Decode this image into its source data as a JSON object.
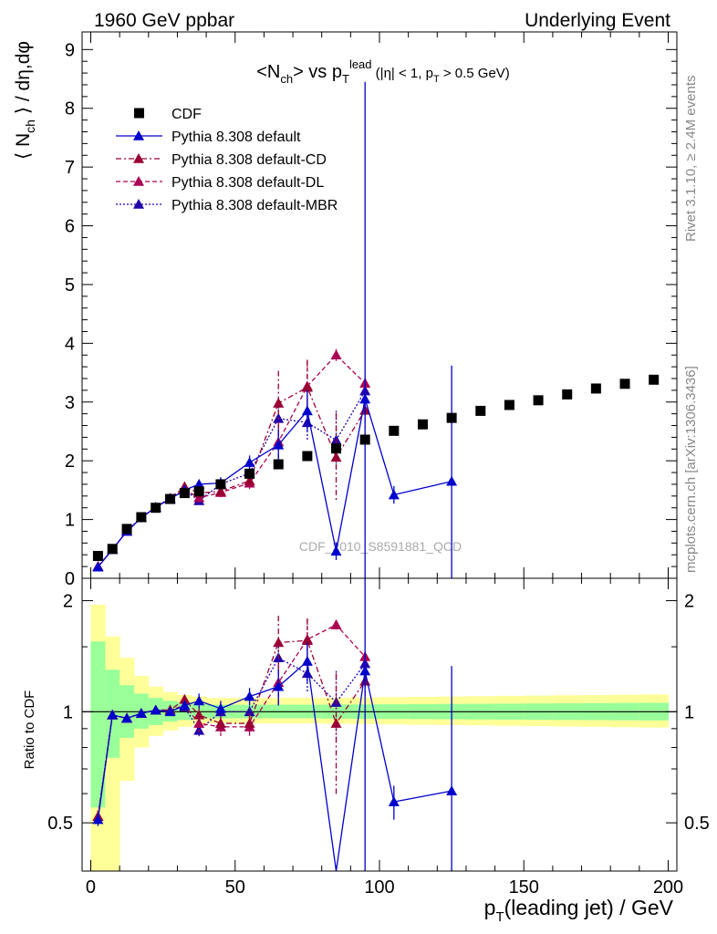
{
  "header": {
    "left": "1960 GeV ppbar",
    "right": "Underlying Event"
  },
  "side_labels": {
    "rivet": "Rivet 3.1.10, ≥ 2.4M events",
    "mcplots": "mcplots.cern.ch [arXiv:1306.3436]"
  },
  "watermark": "CDF_2010_S8591881_QCD",
  "colors": {
    "cdf": "#000000",
    "default": "#0000cc",
    "cd": "#990033",
    "dl": "#aa0055",
    "mbr": "#2200aa",
    "band_inner": "#99ff99",
    "band_outer": "#ffff99"
  },
  "legend": {
    "placement": "top-left",
    "entries": [
      {
        "label": "CDF",
        "key": "cdf",
        "style": "square"
      },
      {
        "label": "Pythia 8.308 default",
        "key": "default",
        "style": "solid"
      },
      {
        "label": "Pythia 8.308 default-CD",
        "key": "cd",
        "style": "dashdot"
      },
      {
        "label": "Pythia 8.308 default-DL",
        "key": "dl",
        "style": "dashed"
      },
      {
        "label": "Pythia 8.308 default-MBR",
        "key": "mbr",
        "style": "dotted"
      }
    ]
  },
  "chart_data": [
    {
      "type": "scatter",
      "panel": "main",
      "xlabel": "p_T(leading jet) / GeV",
      "ylabel": "⟨ N_ch ⟩ / dη,dφ",
      "xlim": [
        -3,
        203
      ],
      "ylim": [
        0,
        9.3
      ],
      "yticks": [
        0,
        1,
        2,
        3,
        4,
        5,
        6,
        7,
        8,
        9
      ],
      "series": [
        {
          "name": "CDF",
          "key": "cdf",
          "x": [
            2.5,
            7.5,
            12.5,
            17.5,
            22.5,
            27.5,
            32.5,
            37.5,
            45,
            55,
            65,
            75,
            85,
            95,
            105,
            115,
            125,
            135,
            145,
            155,
            165,
            175,
            185,
            195
          ],
          "y": [
            0.38,
            0.5,
            0.84,
            1.04,
            1.2,
            1.35,
            1.45,
            1.48,
            1.6,
            1.78,
            1.94,
            2.08,
            2.21,
            2.36,
            2.51,
            2.62,
            2.73,
            2.85,
            2.95,
            3.03,
            3.13,
            3.23,
            3.31,
            3.38
          ]
        },
        {
          "name": "Pythia 8.308 default",
          "key": "default",
          "x": [
            2.5,
            7.5,
            12.5,
            17.5,
            22.5,
            27.5,
            32.5,
            37.5,
            45,
            55,
            65,
            75,
            85,
            95,
            105,
            125
          ],
          "y": [
            0.19,
            0.49,
            0.8,
            1.03,
            1.21,
            1.35,
            1.5,
            1.6,
            1.62,
            1.97,
            2.27,
            2.85,
            0.46,
            3.05,
            1.42,
            1.65
          ],
          "err": [
            0.02,
            0.02,
            0.02,
            0.02,
            0.03,
            0.04,
            0.05,
            0.08,
            0.1,
            0.12,
            0.25,
            0.35,
            0.15,
            5.4,
            0.15,
            1.97
          ]
        },
        {
          "name": "Pythia 8.308 default-CD",
          "key": "cd",
          "x": [
            2.5,
            7.5,
            12.5,
            17.5,
            22.5,
            27.5,
            32.5,
            37.5,
            45,
            55,
            65,
            75,
            85,
            95
          ],
          "y": [
            0.2,
            0.49,
            0.8,
            1.03,
            1.21,
            1.36,
            1.56,
            1.45,
            1.48,
            1.66,
            2.98,
            3.25,
            2.06,
            2.86
          ],
          "err": [
            0.02,
            0.02,
            0.02,
            0.02,
            0.03,
            0.04,
            0.05,
            0.08,
            0.08,
            0.1,
            0.55,
            0.45,
            0.75,
            0.3
          ]
        },
        {
          "name": "Pythia 8.308 default-DL",
          "key": "dl",
          "x": [
            2.5,
            7.5,
            12.5,
            17.5,
            22.5,
            27.5,
            32.5,
            37.5,
            45,
            55,
            65,
            75,
            85,
            95
          ],
          "y": [
            0.2,
            0.49,
            0.8,
            1.03,
            1.21,
            1.36,
            1.51,
            1.37,
            1.46,
            1.62,
            2.32,
            3.27,
            3.8,
            3.32
          ],
          "err": [
            0.02,
            0.02,
            0.02,
            0.02,
            0.03,
            0.04,
            0.05,
            0.08,
            0.08,
            0.1,
            0.3,
            0.45,
            0.1,
            0.1
          ]
        },
        {
          "name": "Pythia 8.308 default-MBR",
          "key": "mbr",
          "x": [
            2.5,
            7.5,
            12.5,
            17.5,
            22.5,
            27.5,
            32.5,
            37.5,
            45,
            55,
            65,
            75,
            85,
            95
          ],
          "y": [
            0.2,
            0.49,
            0.8,
            1.03,
            1.21,
            1.36,
            1.5,
            1.32,
            1.6,
            1.79,
            2.72,
            2.65,
            2.35,
            3.19
          ],
          "err": [
            0.02,
            0.02,
            0.02,
            0.02,
            0.03,
            0.04,
            0.05,
            0.06,
            0.08,
            0.1,
            0.2,
            0.3,
            0.5,
            0.15
          ]
        }
      ]
    },
    {
      "type": "line",
      "panel": "ratio",
      "xlabel": "p_T(leading jet) / GeV",
      "ylabel": "Ratio to CDF",
      "xlim": [
        -3,
        203
      ],
      "ylim": [
        0.37,
        2.3
      ],
      "yscale": "log",
      "yticks": [
        0.5,
        1,
        2
      ],
      "xticks": [
        0,
        50,
        100,
        150,
        200
      ],
      "reference_line": 1,
      "band": {
        "x_edges": [
          0,
          5,
          10,
          15,
          20,
          25,
          30,
          35,
          40,
          50,
          60,
          70,
          80,
          90,
          100,
          110,
          120,
          130,
          140,
          150,
          160,
          170,
          180,
          190,
          200
        ],
        "inner": [
          [
            0.55,
            1.55
          ],
          [
            0.75,
            1.3
          ],
          [
            0.85,
            1.18
          ],
          [
            0.9,
            1.12
          ],
          [
            0.92,
            1.09
          ],
          [
            0.94,
            1.07
          ],
          [
            0.95,
            1.06
          ],
          [
            0.955,
            1.05
          ],
          [
            0.96,
            1.045
          ],
          [
            0.96,
            1.045
          ],
          [
            0.96,
            1.045
          ],
          [
            0.96,
            1.045
          ],
          [
            0.958,
            1.046
          ],
          [
            0.957,
            1.047
          ],
          [
            0.956,
            1.048
          ],
          [
            0.955,
            1.049
          ],
          [
            0.954,
            1.05
          ],
          [
            0.953,
            1.051
          ],
          [
            0.952,
            1.052
          ],
          [
            0.951,
            1.053
          ],
          [
            0.95,
            1.054
          ],
          [
            0.949,
            1.055
          ],
          [
            0.948,
            1.056
          ],
          [
            0.947,
            1.057
          ]
        ],
        "outer": [
          [
            0.3,
            1.95
          ],
          [
            0.3,
            1.6
          ],
          [
            0.65,
            1.4
          ],
          [
            0.8,
            1.25
          ],
          [
            0.86,
            1.17
          ],
          [
            0.89,
            1.13
          ],
          [
            0.91,
            1.11
          ],
          [
            0.92,
            1.1
          ],
          [
            0.93,
            1.09
          ],
          [
            0.93,
            1.09
          ],
          [
            0.93,
            1.09
          ],
          [
            0.93,
            1.09
          ],
          [
            0.928,
            1.092
          ],
          [
            0.926,
            1.094
          ],
          [
            0.924,
            1.096
          ],
          [
            0.922,
            1.098
          ],
          [
            0.92,
            1.1
          ],
          [
            0.918,
            1.102
          ],
          [
            0.916,
            1.104
          ],
          [
            0.914,
            1.106
          ],
          [
            0.912,
            1.108
          ],
          [
            0.91,
            1.11
          ],
          [
            0.908,
            1.112
          ],
          [
            0.906,
            1.114
          ]
        ]
      },
      "series": [
        {
          "name": "Pythia 8.308 default",
          "key": "default",
          "x": [
            2.5,
            7.5,
            12.5,
            17.5,
            22.5,
            27.5,
            32.5,
            37.5,
            45,
            55,
            65,
            75,
            85,
            95,
            105,
            125
          ],
          "y": [
            0.51,
            0.98,
            0.96,
            0.99,
            1.01,
            1.0,
            1.04,
            1.07,
            1.02,
            1.1,
            1.17,
            1.37,
            0.21,
            1.29,
            0.57,
            0.61
          ],
          "err": [
            0.02,
            0.02,
            0.02,
            0.02,
            0.02,
            0.02,
            0.03,
            0.05,
            0.05,
            0.06,
            0.13,
            0.17,
            0.07,
            2.3,
            0.06,
            0.72
          ]
        },
        {
          "name": "Pythia 8.308 default-CD",
          "key": "cd",
          "x": [
            2.5,
            7.5,
            12.5,
            17.5,
            22.5,
            27.5,
            32.5,
            37.5,
            45,
            55,
            65,
            75,
            85,
            95
          ],
          "y": [
            0.52,
            0.98,
            0.96,
            0.99,
            1.01,
            1.01,
            1.08,
            0.98,
            0.93,
            0.93,
            1.54,
            1.56,
            0.93,
            1.21
          ],
          "err": [
            0.02,
            0.02,
            0.02,
            0.02,
            0.02,
            0.02,
            0.03,
            0.05,
            0.05,
            0.06,
            0.28,
            0.22,
            0.34,
            0.13
          ]
        },
        {
          "name": "Pythia 8.308 default-DL",
          "key": "dl",
          "x": [
            2.5,
            7.5,
            12.5,
            17.5,
            22.5,
            27.5,
            32.5,
            37.5,
            45,
            55,
            65,
            75,
            85,
            95
          ],
          "y": [
            0.52,
            0.98,
            0.96,
            0.99,
            1.01,
            1.01,
            1.04,
            0.93,
            0.91,
            0.91,
            1.2,
            1.57,
            1.72,
            1.41
          ],
          "err": [
            0.02,
            0.02,
            0.02,
            0.02,
            0.02,
            0.02,
            0.03,
            0.05,
            0.05,
            0.06,
            0.15,
            0.22,
            0.05,
            0.05
          ]
        },
        {
          "name": "Pythia 8.308 default-MBR",
          "key": "mbr",
          "x": [
            2.5,
            7.5,
            12.5,
            17.5,
            22.5,
            27.5,
            32.5,
            37.5,
            45,
            55,
            65,
            75,
            85,
            95
          ],
          "y": [
            0.52,
            0.98,
            0.96,
            0.99,
            1.01,
            1.01,
            1.03,
            0.89,
            1.0,
            1.0,
            1.4,
            1.27,
            1.06,
            1.35
          ],
          "err": [
            0.02,
            0.02,
            0.02,
            0.02,
            0.02,
            0.02,
            0.03,
            0.04,
            0.05,
            0.06,
            0.1,
            0.14,
            0.23,
            0.06
          ]
        }
      ]
    }
  ]
}
